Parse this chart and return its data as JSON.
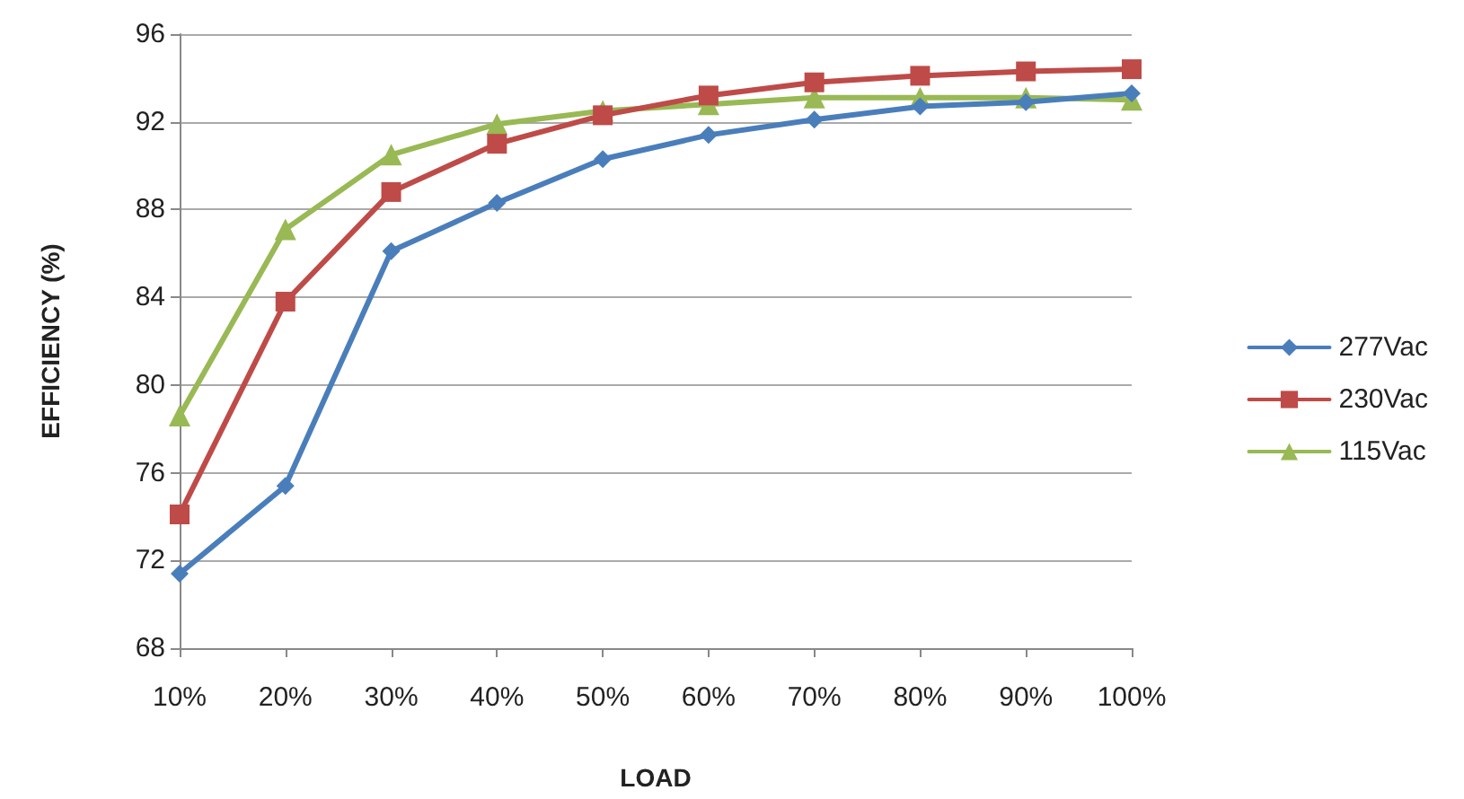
{
  "chart_data": {
    "type": "line",
    "xlabel": "LOAD",
    "ylabel": "EFFICIENCY (%)",
    "categories": [
      "10%",
      "20%",
      "30%",
      "40%",
      "50%",
      "60%",
      "70%",
      "80%",
      "90%",
      "100%"
    ],
    "series": [
      {
        "name": "277Vac",
        "color": "#4a7ebb",
        "marker": "diamond",
        "values": [
          71.4,
          75.4,
          86.1,
          88.3,
          90.3,
          91.4,
          92.1,
          92.7,
          92.9,
          93.3
        ]
      },
      {
        "name": "230Vac",
        "color": "#be4b48",
        "marker": "square",
        "values": [
          74.1,
          83.8,
          88.8,
          91.0,
          92.3,
          93.2,
          93.8,
          94.1,
          94.3,
          94.4
        ]
      },
      {
        "name": "115Vac",
        "color": "#98b954",
        "marker": "triangle",
        "values": [
          78.6,
          87.1,
          90.5,
          91.9,
          92.5,
          92.8,
          93.1,
          93.1,
          93.1,
          93.0
        ]
      }
    ],
    "ylim": [
      68,
      96
    ],
    "yticks": [
      68,
      72,
      76,
      80,
      84,
      88,
      92,
      96
    ],
    "grid": "y",
    "legend": "right",
    "line_style": "solid"
  }
}
